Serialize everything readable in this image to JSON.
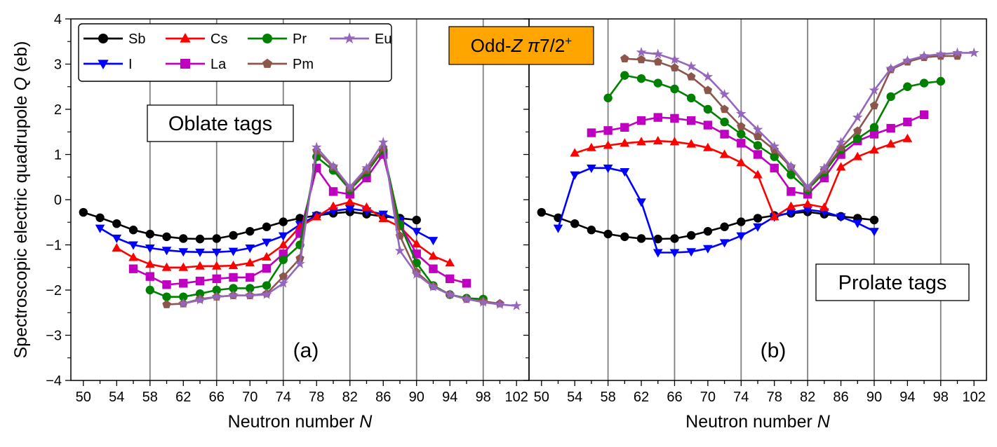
{
  "figure": {
    "ylabel_main": "Spectroscopic electric quadrupole ",
    "ylabel_var": "Q",
    "ylabel_unit": " (eb)",
    "title_prefix": "Odd-",
    "title_z": "Z",
    "title_pi": " π",
    "title_frac": "7/2",
    "title_sup": "+",
    "title_bg": "#ffa500"
  },
  "legend": [
    {
      "name": "Sb",
      "color": "#000000",
      "marker": "circle"
    },
    {
      "name": "I",
      "color": "#0000ff",
      "marker": "triangle-down"
    },
    {
      "name": "Cs",
      "color": "#ff0000",
      "marker": "triangle-up"
    },
    {
      "name": "La",
      "color": "#c000c0",
      "marker": "square"
    },
    {
      "name": "Pr",
      "color": "#008000",
      "marker": "circle"
    },
    {
      "name": "Pm",
      "color": "#8c564b",
      "marker": "pentagon"
    },
    {
      "name": "Eu",
      "color": "#9467bd",
      "marker": "star"
    }
  ],
  "chart_data": [
    {
      "type": "line",
      "panel_label": "(a)",
      "tag_label": "Oblate tags",
      "xlabel_main": "Neutron number ",
      "xlabel_var": "N",
      "ylabel": "Spectroscopic electric quadrupole Q (eb)",
      "xlim": [
        48.5,
        103.5
      ],
      "ylim": [
        -4,
        4
      ],
      "xticks": [
        50,
        54,
        58,
        62,
        66,
        70,
        74,
        78,
        82,
        86,
        90,
        94,
        98,
        102
      ],
      "xtick_labels": [
        "50",
        "54",
        "58",
        "62",
        "66",
        "70",
        "74",
        "78",
        "82",
        "86",
        "90",
        "94",
        "98",
        "102"
      ],
      "yticks": [
        -4,
        -3,
        -2,
        -1,
        0,
        1,
        2,
        3,
        4
      ],
      "ytick_labels": [
        "−4",
        "−3",
        "−2",
        "−1",
        "0",
        "1",
        "2",
        "3",
        "4"
      ],
      "vlines": [
        58,
        66,
        74,
        82,
        90,
        98
      ],
      "series": [
        {
          "name": "Sb",
          "x": [
            50,
            52,
            54,
            56,
            58,
            60,
            62,
            64,
            66,
            68,
            70,
            72,
            74,
            76,
            78,
            80,
            82,
            84,
            86,
            88,
            90
          ],
          "y": [
            -0.28,
            -0.4,
            -0.53,
            -0.67,
            -0.76,
            -0.82,
            -0.86,
            -0.87,
            -0.86,
            -0.79,
            -0.7,
            -0.6,
            -0.49,
            -0.41,
            -0.35,
            -0.3,
            -0.27,
            -0.32,
            -0.37,
            -0.41,
            -0.45
          ]
        },
        {
          "name": "I",
          "x": [
            52,
            54,
            56,
            58,
            60,
            62,
            64,
            66,
            68,
            70,
            72,
            74,
            76,
            78,
            80,
            82,
            84,
            86,
            88,
            90,
            92
          ],
          "y": [
            -0.63,
            -0.85,
            -1.0,
            -1.07,
            -1.12,
            -1.15,
            -1.16,
            -1.16,
            -1.14,
            -1.07,
            -0.94,
            -0.8,
            -0.55,
            -0.35,
            -0.25,
            -0.2,
            -0.25,
            -0.32,
            -0.45,
            -0.7,
            -0.9
          ]
        },
        {
          "name": "Cs",
          "x": [
            54,
            56,
            58,
            60,
            62,
            64,
            66,
            68,
            70,
            72,
            74,
            76,
            78,
            80,
            82,
            84,
            86,
            88,
            90,
            92,
            94
          ],
          "y": [
            -1.07,
            -1.28,
            -1.43,
            -1.5,
            -1.5,
            -1.47,
            -1.47,
            -1.46,
            -1.4,
            -1.27,
            -1.0,
            -0.6,
            -0.38,
            -0.15,
            -0.05,
            -0.17,
            -0.42,
            -0.6,
            -0.98,
            -1.25,
            -1.4
          ]
        },
        {
          "name": "La",
          "x": [
            56,
            58,
            60,
            62,
            64,
            66,
            68,
            70,
            72,
            74,
            76,
            78,
            80,
            82,
            84,
            86,
            88,
            90,
            92,
            94,
            96
          ],
          "y": [
            -1.53,
            -1.7,
            -1.88,
            -1.85,
            -1.8,
            -1.75,
            -1.72,
            -1.72,
            -1.52,
            -1.2,
            -0.75,
            0.7,
            0.18,
            0.12,
            0.48,
            1.0,
            -0.55,
            -1.2,
            -1.53,
            -1.75,
            -1.85
          ]
        },
        {
          "name": "Pr",
          "x": [
            58,
            60,
            62,
            64,
            66,
            68,
            70,
            72,
            74,
            76,
            78,
            80,
            82,
            84,
            86,
            88,
            90,
            92,
            94,
            96,
            98
          ],
          "y": [
            -2.0,
            -2.15,
            -2.15,
            -2.08,
            -2.0,
            -1.96,
            -1.96,
            -1.9,
            -1.33,
            -1.0,
            0.95,
            0.65,
            0.22,
            0.6,
            1.1,
            -0.55,
            -1.4,
            -1.9,
            -2.1,
            -2.18,
            -2.2
          ]
        },
        {
          "name": "Pm",
          "x": [
            60,
            62,
            64,
            66,
            68,
            70,
            72,
            74,
            76,
            78,
            80,
            82,
            84,
            86,
            88,
            90,
            92,
            94,
            96,
            98,
            100
          ],
          "y": [
            -2.32,
            -2.3,
            -2.2,
            -2.15,
            -2.12,
            -2.12,
            -2.08,
            -1.7,
            -1.3,
            1.08,
            0.72,
            0.25,
            0.65,
            1.15,
            -0.8,
            -1.6,
            -1.92,
            -2.1,
            -2.2,
            -2.25,
            -2.3
          ]
        },
        {
          "name": "Eu",
          "x": [
            62,
            64,
            66,
            68,
            70,
            72,
            74,
            76,
            78,
            80,
            82,
            84,
            86,
            88,
            90,
            92,
            94,
            96,
            98,
            100,
            102
          ],
          "y": [
            -2.3,
            -2.22,
            -2.15,
            -2.12,
            -2.12,
            -2.1,
            -1.85,
            -1.42,
            1.16,
            0.74,
            0.28,
            0.7,
            1.27,
            -1.13,
            -1.65,
            -1.93,
            -2.1,
            -2.2,
            -2.27,
            -2.32,
            -2.35
          ]
        }
      ]
    },
    {
      "type": "line",
      "panel_label": "(b)",
      "tag_label": "Prolate tags",
      "xlabel_main": "Neutron number ",
      "xlabel_var": "N",
      "xlim": [
        48.5,
        103.5
      ],
      "ylim": [
        -4,
        4
      ],
      "xticks": [
        50,
        54,
        58,
        62,
        66,
        70,
        74,
        78,
        82,
        86,
        90,
        94,
        98,
        102
      ],
      "xtick_labels": [
        "50",
        "54",
        "58",
        "62",
        "66",
        "70",
        "74",
        "78",
        "82",
        "86",
        "90",
        "94",
        "98",
        "102"
      ],
      "vlines": [
        58,
        66,
        74,
        82,
        90,
        98
      ],
      "series": [
        {
          "name": "Sb",
          "x": [
            50,
            52,
            54,
            56,
            58,
            60,
            62,
            64,
            66,
            68,
            70,
            72,
            74,
            76,
            78,
            80,
            82,
            84,
            86,
            88,
            90
          ],
          "y": [
            -0.28,
            -0.4,
            -0.53,
            -0.67,
            -0.76,
            -0.82,
            -0.86,
            -0.87,
            -0.86,
            -0.79,
            -0.7,
            -0.6,
            -0.49,
            -0.41,
            -0.35,
            -0.3,
            -0.27,
            -0.32,
            -0.37,
            -0.41,
            -0.45
          ]
        },
        {
          "name": "I",
          "x": [
            52,
            54,
            56,
            58,
            60,
            62,
            64,
            66,
            68,
            70,
            72,
            74,
            76,
            78,
            80,
            82,
            84,
            86,
            88,
            90
          ],
          "y": [
            -0.63,
            0.55,
            0.7,
            0.7,
            0.62,
            -0.05,
            -1.17,
            -1.17,
            -1.15,
            -1.08,
            -0.95,
            -0.8,
            -0.6,
            -0.38,
            -0.28,
            -0.22,
            -0.27,
            -0.38,
            -0.52,
            -0.7
          ]
        },
        {
          "name": "Cs",
          "x": [
            54,
            56,
            58,
            60,
            62,
            64,
            66,
            68,
            70,
            72,
            74,
            76,
            78,
            80,
            82,
            84,
            86,
            88,
            90,
            92,
            94
          ],
          "y": [
            1.03,
            1.15,
            1.2,
            1.25,
            1.28,
            1.3,
            1.28,
            1.23,
            1.15,
            1.0,
            0.82,
            0.55,
            -0.38,
            -0.15,
            -0.1,
            -0.17,
            0.72,
            0.95,
            1.1,
            1.23,
            1.35
          ]
        },
        {
          "name": "La",
          "x": [
            56,
            58,
            60,
            62,
            64,
            66,
            68,
            70,
            72,
            74,
            76,
            78,
            80,
            82,
            84,
            86,
            88,
            90,
            92,
            94,
            96
          ],
          "y": [
            1.48,
            1.53,
            1.6,
            1.75,
            1.82,
            1.8,
            1.75,
            1.65,
            1.45,
            1.25,
            1.0,
            0.7,
            0.18,
            0.12,
            0.48,
            1.0,
            1.3,
            1.45,
            1.58,
            1.72,
            1.88
          ]
        },
        {
          "name": "Pr",
          "x": [
            58,
            60,
            62,
            64,
            66,
            68,
            70,
            72,
            74,
            76,
            78,
            80,
            82,
            84,
            86,
            88,
            90,
            92,
            94,
            96,
            98
          ],
          "y": [
            2.25,
            2.75,
            2.68,
            2.58,
            2.45,
            2.25,
            2.0,
            1.72,
            1.45,
            1.2,
            0.95,
            0.55,
            0.22,
            0.6,
            1.1,
            1.35,
            1.6,
            2.28,
            2.5,
            2.58,
            2.62
          ]
        },
        {
          "name": "Pm",
          "x": [
            60,
            62,
            64,
            66,
            68,
            70,
            72,
            74,
            76,
            78,
            80,
            82,
            84,
            86,
            88,
            90,
            92,
            94,
            96,
            98,
            100
          ],
          "y": [
            3.12,
            3.1,
            3.05,
            2.92,
            2.72,
            2.42,
            2.0,
            1.62,
            1.4,
            1.1,
            0.72,
            0.25,
            0.65,
            1.15,
            1.52,
            2.08,
            2.88,
            3.05,
            3.15,
            3.18,
            3.18
          ]
        },
        {
          "name": "Eu",
          "x": [
            62,
            64,
            66,
            68,
            70,
            72,
            74,
            76,
            78,
            80,
            82,
            84,
            86,
            88,
            90,
            92,
            94,
            96,
            98,
            100,
            102
          ],
          "y": [
            3.26,
            3.22,
            3.1,
            2.95,
            2.72,
            2.33,
            1.9,
            1.55,
            1.18,
            0.74,
            0.28,
            0.7,
            1.27,
            1.82,
            2.42,
            2.9,
            3.08,
            3.18,
            3.22,
            3.25,
            3.25
          ]
        }
      ]
    }
  ]
}
